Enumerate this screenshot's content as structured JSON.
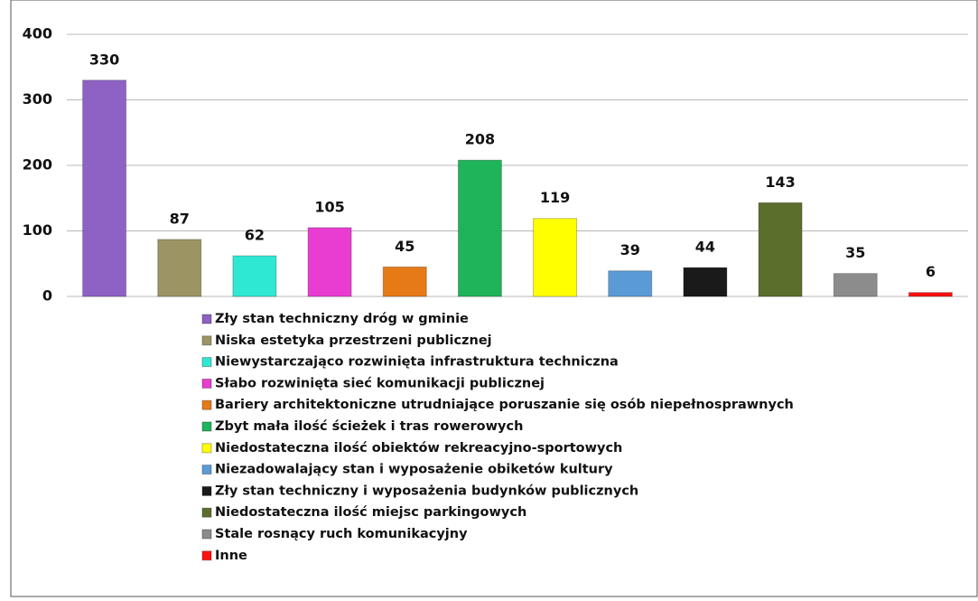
{
  "chart_data": {
    "type": "bar",
    "categories": [
      "Zły stan techniczny dróg w gminie",
      "Niska estetyka przestrzeni publicznej",
      "Niewystarczająco rozwinięta infrastruktura techniczna",
      "Słabo rozwinięta sieć komunikacji publicznej",
      "Bariery architektoniczne utrudniające poruszanie się osób niepełnosprawnych",
      "Zbyt mała ilość ścieżek i tras rowerowych",
      "Niedostateczna ilość obiektów rekreacyjno-sportowych",
      "Niezadowalający stan i wyposażenie obiketów kultury",
      "Zły stan techniczny i wyposażenia budynków publicznych",
      "Niedostateczna ilość miejsc parkingowych",
      "Stale rosnący ruch komunikacyjny",
      "Inne"
    ],
    "values": [
      330,
      87,
      62,
      105,
      45,
      208,
      119,
      39,
      44,
      143,
      35,
      6
    ],
    "colors": [
      "#8e62c4",
      "#9c9463",
      "#2ee8d4",
      "#e83dd0",
      "#e57a17",
      "#1fb45a",
      "#ffff00",
      "#5b9bd5",
      "#1a1a1a",
      "#5b6e2c",
      "#8c8c8c",
      "#ff1010"
    ],
    "ylim": [
      0,
      400
    ],
    "yticks": [
      0,
      100,
      200,
      300,
      400
    ],
    "grid": true,
    "legend": "bottom"
  }
}
